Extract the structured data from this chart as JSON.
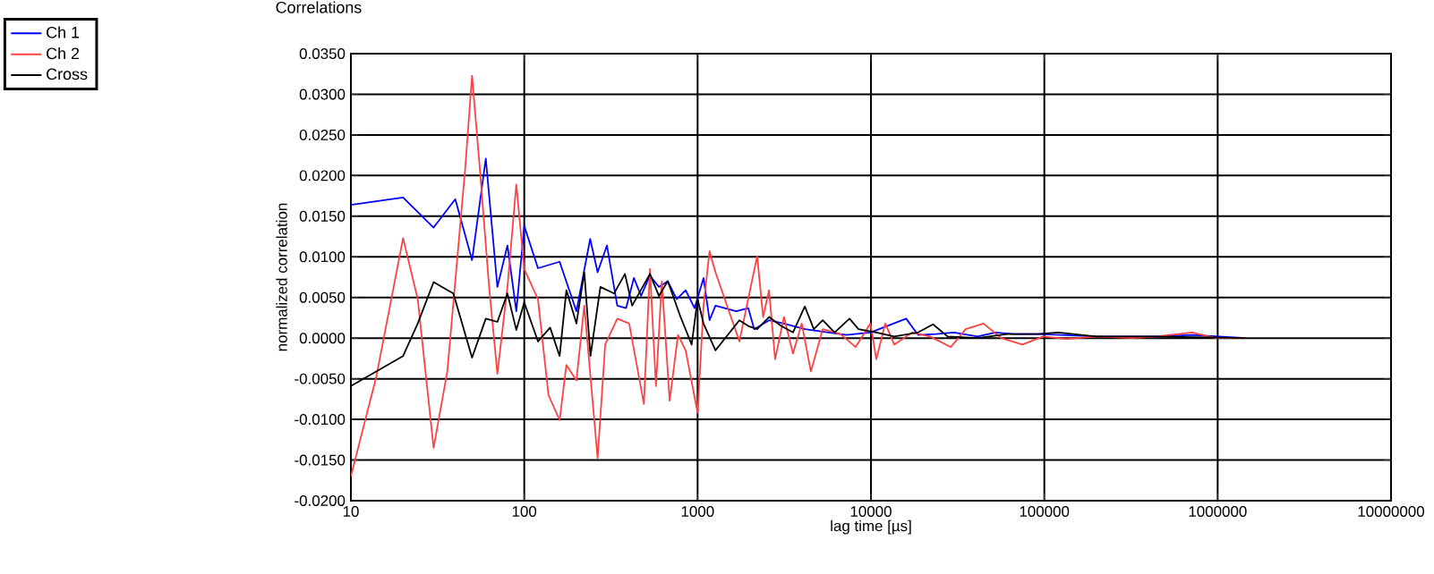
{
  "chart_data": {
    "type": "line",
    "title": "Correlations",
    "xlabel": "lag time [µs]",
    "ylabel": "normalized correlation",
    "log": "x",
    "grid": true,
    "legend": "top left",
    "xlim": [
      10,
      10000000
    ],
    "xticks": [
      10,
      100,
      1000,
      10000,
      100000,
      1000000,
      10000000
    ],
    "ylim": [
      -0.02,
      0.035
    ],
    "yticks": [
      {
        "value": -0.02,
        "label": "-0.0200"
      },
      {
        "value": -0.015,
        "label": "-0.0150"
      },
      {
        "value": -0.01,
        "label": "-0.0100"
      },
      {
        "value": -0.005,
        "label": "-0.0050"
      },
      {
        "value": 0,
        "label": "0.0000"
      },
      {
        "value": 0.005,
        "label": "0.0050"
      },
      {
        "value": 0.01,
        "label": "0.0100"
      },
      {
        "value": 0.015,
        "label": "0.0150"
      },
      {
        "value": 0.02,
        "label": "0.0200"
      },
      {
        "value": 0.025,
        "label": "0.0250"
      },
      {
        "value": 0.03,
        "label": "0.0300"
      },
      {
        "value": 0.035,
        "label": "0.0350"
      }
    ],
    "series": [
      {
        "name": "Ch 1",
        "color": "#0000ff",
        "x": [
          10,
          20,
          30,
          40,
          50,
          60,
          70,
          80,
          90,
          100,
          120,
          160,
          200,
          240,
          265,
          300,
          344,
          387,
          429,
          472,
          531,
          598,
          673,
          758,
          853,
          961,
          1082,
          1172,
          1268,
          1671,
          1959,
          2122,
          2583,
          3148,
          4156,
          5700,
          7230,
          9930,
          15960,
          18700,
          23700,
          30100,
          41200,
          52200,
          66200,
          91000,
          124800,
          200000,
          442600,
          711000,
          1452000
        ],
        "values": [
          0.0164,
          0.0173,
          0.0136,
          0.0171,
          0.0096,
          0.0221,
          0.0063,
          0.0114,
          0.0033,
          0.0138,
          0.0086,
          0.0094,
          0.0033,
          0.0122,
          0.0081,
          0.0114,
          0.004,
          0.0037,
          0.0074,
          0.0052,
          0.0077,
          0.0063,
          0.007,
          0.0048,
          0.0059,
          0.0037,
          0.0074,
          0.0022,
          0.004,
          0.0033,
          0.0037,
          0.0011,
          0.0022,
          0.0018,
          0.0011,
          0.0007,
          0.0004,
          0.0007,
          0.0024,
          0.0004,
          0.0005,
          0.0007,
          0.0002,
          0.0007,
          0.0005,
          0.0005,
          0.0004,
          0.0002,
          0.0002,
          0.0004,
          0.0
        ]
      },
      {
        "name": "Ch 2",
        "color": "#ff4040",
        "x": [
          10,
          14,
          20,
          24.3,
          30,
          36,
          45.7,
          50,
          55.7,
          62.7,
          70,
          80,
          90,
          100,
          120,
          138,
          160,
          175,
          200,
          222,
          265,
          293,
          344,
          403,
          490,
          531,
          575,
          622,
          690,
          771,
          853,
          1000,
          1082,
          1172,
          1268,
          1742,
          1959,
          2206,
          2388,
          2583,
          2800,
          3148,
          3550,
          3990,
          4500,
          5270,
          6680,
          8150,
          9930,
          10740,
          12100,
          13620,
          17270,
          21900,
          28900,
          35200,
          44600,
          56500,
          74600,
          98400,
          135000,
          200000,
          323000,
          442600,
          711000,
          977000,
          1452000
        ],
        "values": [
          -0.017,
          -0.0048,
          0.0123,
          0.0048,
          -0.0135,
          -0.0041,
          0.021,
          0.0323,
          0.0203,
          0.0063,
          -0.0044,
          0.0063,
          0.0189,
          0.0085,
          0.0048,
          -0.007,
          -0.0101,
          -0.0033,
          -0.0052,
          0.004,
          -0.0148,
          -0.0008,
          0.0024,
          0.0018,
          -0.0081,
          0.0085,
          -0.0059,
          0.007,
          -0.0077,
          0.0004,
          -0.0015,
          -0.0092,
          0.004,
          0.0107,
          0.0081,
          -0.0004,
          0.0048,
          0.0101,
          0.0026,
          0.0059,
          -0.0026,
          0.0026,
          -0.0019,
          0.0018,
          -0.0041,
          0.0011,
          0.0005,
          -0.0011,
          0.0018,
          -0.0026,
          0.0018,
          -0.0008,
          0.0007,
          0.0002,
          -0.0011,
          0.0011,
          0.0018,
          0.0,
          -0.0008,
          0.0002,
          -0.0001,
          0.0002,
          0.0,
          0.0002,
          0.0007,
          0.0,
          0.0
        ]
      },
      {
        "name": "Cross",
        "color": "#000000",
        "x": [
          10,
          14,
          20,
          24.3,
          30,
          39,
          50,
          60,
          70,
          80,
          90,
          100,
          120,
          141,
          160,
          175,
          200,
          222,
          241,
          275,
          330,
          381,
          419,
          531,
          598,
          673,
          788,
          924,
          1000,
          1082,
          1268,
          1742,
          1959,
          2206,
          2583,
          3030,
          3550,
          4156,
          4680,
          5270,
          6170,
          7520,
          8470,
          10740,
          13620,
          18700,
          22800,
          27700,
          41200,
          61200,
          91000,
          120000,
          200000,
          442600,
          1452000
        ],
        "values": [
          -0.0059,
          -0.0041,
          -0.0022,
          0.0018,
          0.0069,
          0.0055,
          -0.0024,
          0.0024,
          0.002,
          0.0055,
          0.001,
          0.0044,
          -0.0004,
          0.0013,
          -0.0022,
          0.0059,
          0.0018,
          0.0081,
          -0.0022,
          0.0063,
          0.0055,
          0.0079,
          0.004,
          0.0079,
          0.0052,
          0.007,
          0.0029,
          -0.0008,
          0.0048,
          0.0018,
          -0.0015,
          0.0022,
          0.0015,
          0.0011,
          0.0026,
          0.0015,
          0.0007,
          0.0039,
          0.0011,
          0.0022,
          0.0007,
          0.0024,
          0.0011,
          0.0007,
          0.0002,
          0.0007,
          0.0017,
          0.0002,
          0.0,
          0.0005,
          0.0005,
          0.0007,
          0.0002,
          0.0002,
          0.0
        ]
      }
    ]
  }
}
